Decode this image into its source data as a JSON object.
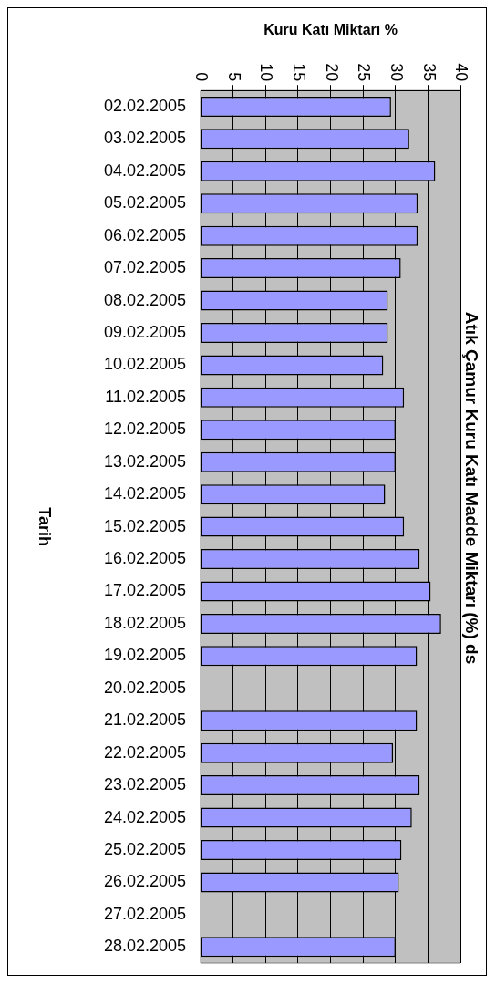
{
  "chart_data": {
    "type": "bar",
    "orientation": "horizontal",
    "title": "Atık Çamur Kuru Katı Madde Miktarı (%) ds",
    "xlabel": "Kuru Katı Miktarı %",
    "ylabel": "Tarih",
    "categories": [
      "02.02.2005",
      "03.02.2005",
      "04.02.2005",
      "05.02.2005",
      "06.02.2005",
      "07.02.2005",
      "08.02.2005",
      "09.02.2005",
      "10.02.2005",
      "11.02.2005",
      "12.02.2005",
      "13.02.2005",
      "14.02.2005",
      "15.02.2005",
      "16.02.2005",
      "17.02.2005",
      "18.02.2005",
      "19.02.2005",
      "20.02.2005",
      "21.02.2005",
      "22.02.2005",
      "23.02.2005",
      "24.02.2005",
      "25.02.2005",
      "26.02.2005",
      "27.02.2005",
      "28.02.2005"
    ],
    "values": [
      29.3,
      32.1,
      36.1,
      33.4,
      33.4,
      30.8,
      28.8,
      28.8,
      28.1,
      31.3,
      30.0,
      30.0,
      28.4,
      31.3,
      33.7,
      35.4,
      37.0,
      33.3,
      null,
      33.3,
      29.6,
      33.7,
      32.5,
      30.9,
      30.5,
      null,
      30.0
    ],
    "color": "#9999ff",
    "xlim": [
      0,
      40
    ],
    "xticks": [
      0,
      5,
      10,
      15,
      20,
      25,
      30,
      35,
      40
    ],
    "grid": "x",
    "legend": false
  }
}
